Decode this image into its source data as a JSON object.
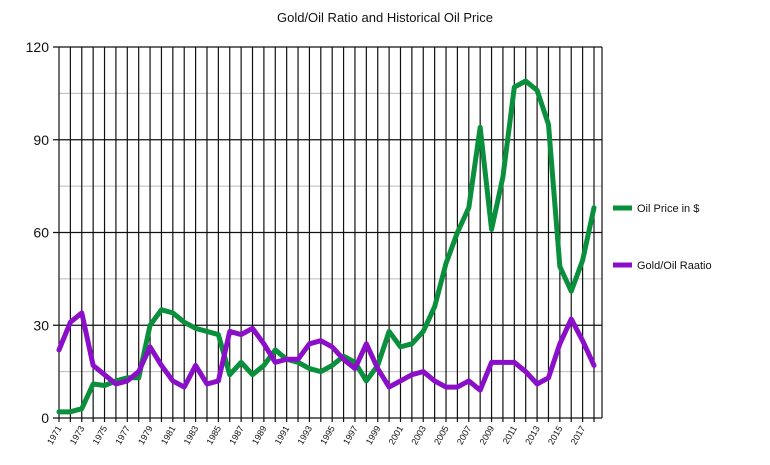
{
  "chart_data": {
    "type": "line",
    "title": "Gold/Oil Ratio and Historical Oil Price",
    "xlabel": "",
    "ylabel": "",
    "ylim": [
      0,
      120
    ],
    "yticks": [
      0,
      30,
      60,
      90,
      120
    ],
    "grid": true,
    "legend_position": "right",
    "x": [
      1971,
      1972,
      1973,
      1974,
      1975,
      1976,
      1977,
      1978,
      1979,
      1980,
      1981,
      1982,
      1983,
      1984,
      1985,
      1986,
      1987,
      1988,
      1989,
      1990,
      1991,
      1992,
      1993,
      1994,
      1995,
      1996,
      1997,
      1998,
      1999,
      2000,
      2001,
      2002,
      2003,
      2004,
      2005,
      2006,
      2007,
      2008,
      2009,
      2010,
      2011,
      2012,
      2013,
      2014,
      2015,
      2016,
      2017,
      2018
    ],
    "series": [
      {
        "name": "Oil Price in $",
        "color": "#0a8f3c",
        "values": [
          2,
          2,
          3,
          11,
          10.5,
          12,
          13,
          13,
          30,
          35,
          34,
          31,
          29,
          28,
          27,
          14,
          18,
          14,
          17,
          22,
          19,
          18,
          16,
          15,
          17,
          20,
          18,
          12,
          17,
          28,
          23,
          24,
          28,
          36,
          50,
          60,
          68,
          94,
          61,
          78,
          107,
          109,
          106,
          95,
          49,
          41,
          51,
          68
        ]
      },
      {
        "name": "Gold/Oil Raatio",
        "color": "#8b0fc9",
        "values": [
          22,
          31,
          34,
          17,
          14,
          11,
          12,
          15,
          23,
          17,
          12,
          10,
          17,
          11,
          12,
          28,
          27,
          29,
          24,
          18,
          19,
          19,
          24,
          25,
          23,
          19,
          16,
          24,
          16,
          10,
          12,
          14,
          15,
          12,
          10,
          10,
          12,
          9,
          18,
          18,
          18,
          15,
          11,
          13,
          24,
          32,
          25,
          17
        ]
      }
    ]
  }
}
